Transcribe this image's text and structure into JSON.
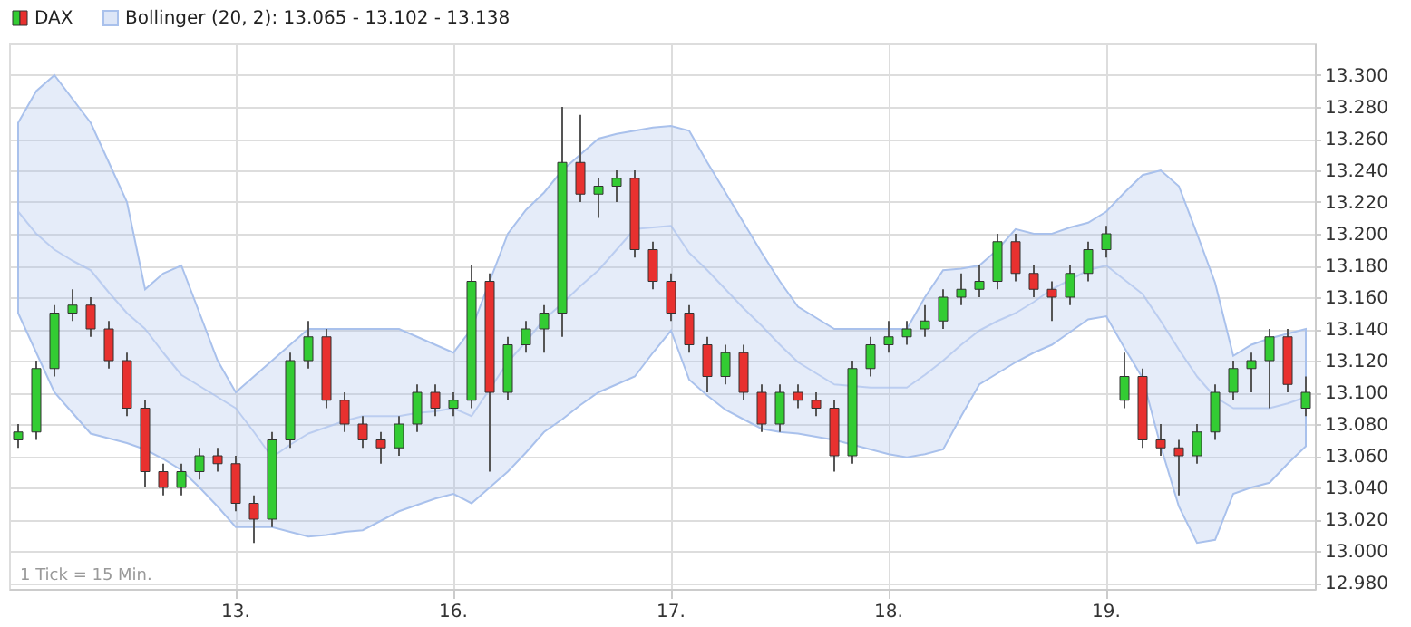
{
  "chart_data": {
    "type": "candlestick",
    "categories": [
      null,
      null,
      null,
      null,
      null,
      null,
      null,
      null,
      null,
      null,
      null,
      null,
      "13.",
      null,
      null,
      null,
      null,
      null,
      null,
      null,
      null,
      null,
      null,
      null,
      "16.",
      null,
      null,
      null,
      null,
      null,
      null,
      null,
      null,
      null,
      null,
      null,
      "17.",
      null,
      null,
      null,
      null,
      null,
      null,
      null,
      null,
      null,
      null,
      null,
      "18.",
      null,
      null,
      null,
      null,
      null,
      null,
      null,
      null,
      null,
      null,
      null,
      "19.",
      null,
      null,
      null,
      null,
      null,
      null,
      null,
      null,
      null,
      null,
      null
    ],
    "series": [
      {
        "name": "DAX",
        "ohlc": [
          [
            13.07,
            13.08,
            13.065,
            13.075
          ],
          [
            13.075,
            13.12,
            13.07,
            13.115
          ],
          [
            13.115,
            13.155,
            13.11,
            13.15
          ],
          [
            13.15,
            13.165,
            13.145,
            13.155
          ],
          [
            13.155,
            13.16,
            13.135,
            13.14
          ],
          [
            13.14,
            13.145,
            13.115,
            13.12
          ],
          [
            13.12,
            13.125,
            13.085,
            13.09
          ],
          [
            13.09,
            13.095,
            13.04,
            13.05
          ],
          [
            13.05,
            13.055,
            13.035,
            13.04
          ],
          [
            13.04,
            13.055,
            13.035,
            13.05
          ],
          [
            13.05,
            13.065,
            13.045,
            13.06
          ],
          [
            13.06,
            13.065,
            13.05,
            13.055
          ],
          [
            13.055,
            13.06,
            13.025,
            13.03
          ],
          [
            13.03,
            13.035,
            13.005,
            13.02
          ],
          [
            13.02,
            13.075,
            13.015,
            13.07
          ],
          [
            13.07,
            13.125,
            13.065,
            13.12
          ],
          [
            13.12,
            13.145,
            13.115,
            13.135
          ],
          [
            13.135,
            13.14,
            13.09,
            13.095
          ],
          [
            13.095,
            13.1,
            13.075,
            13.08
          ],
          [
            13.08,
            13.085,
            13.065,
            13.07
          ],
          [
            13.07,
            13.075,
            13.055,
            13.065
          ],
          [
            13.065,
            13.085,
            13.06,
            13.08
          ],
          [
            13.08,
            13.105,
            13.075,
            13.1
          ],
          [
            13.1,
            13.105,
            13.085,
            13.09
          ],
          [
            13.09,
            13.1,
            13.085,
            13.095
          ],
          [
            13.095,
            13.18,
            13.09,
            13.17
          ],
          [
            13.17,
            13.175,
            13.05,
            13.1
          ],
          [
            13.1,
            13.135,
            13.095,
            13.13
          ],
          [
            13.13,
            13.145,
            13.125,
            13.14
          ],
          [
            13.14,
            13.155,
            13.125,
            13.15
          ],
          [
            13.15,
            13.28,
            13.135,
            13.245
          ],
          [
            13.245,
            13.275,
            13.22,
            13.225
          ],
          [
            13.225,
            13.235,
            13.21,
            13.23
          ],
          [
            13.23,
            13.24,
            13.22,
            13.235
          ],
          [
            13.235,
            13.24,
            13.185,
            13.19
          ],
          [
            13.19,
            13.195,
            13.165,
            13.17
          ],
          [
            13.17,
            13.175,
            13.145,
            13.15
          ],
          [
            13.15,
            13.155,
            13.125,
            13.13
          ],
          [
            13.13,
            13.135,
            13.1,
            13.11
          ],
          [
            13.11,
            13.13,
            13.105,
            13.125
          ],
          [
            13.125,
            13.13,
            13.095,
            13.1
          ],
          [
            13.1,
            13.105,
            13.075,
            13.08
          ],
          [
            13.08,
            13.105,
            13.075,
            13.1
          ],
          [
            13.1,
            13.105,
            13.09,
            13.095
          ],
          [
            13.095,
            13.1,
            13.085,
            13.09
          ],
          [
            13.09,
            13.095,
            13.05,
            13.06
          ],
          [
            13.06,
            13.12,
            13.055,
            13.115
          ],
          [
            13.115,
            13.135,
            13.11,
            13.13
          ],
          [
            13.13,
            13.145,
            13.125,
            13.135
          ],
          [
            13.135,
            13.145,
            13.13,
            13.14
          ],
          [
            13.14,
            13.155,
            13.135,
            13.145
          ],
          [
            13.145,
            13.165,
            13.14,
            13.16
          ],
          [
            13.16,
            13.175,
            13.155,
            13.165
          ],
          [
            13.165,
            13.18,
            13.16,
            13.17
          ],
          [
            13.17,
            13.2,
            13.165,
            13.195
          ],
          [
            13.195,
            13.2,
            13.17,
            13.175
          ],
          [
            13.175,
            13.18,
            13.16,
            13.165
          ],
          [
            13.165,
            13.17,
            13.145,
            13.16
          ],
          [
            13.16,
            13.18,
            13.155,
            13.175
          ],
          [
            13.175,
            13.195,
            13.17,
            13.19
          ],
          [
            13.19,
            13.205,
            13.185,
            13.2
          ],
          [
            13.095,
            13.125,
            13.09,
            13.11
          ],
          [
            13.11,
            13.115,
            13.065,
            13.07
          ],
          [
            13.07,
            13.08,
            13.06,
            13.065
          ],
          [
            13.065,
            13.07,
            13.035,
            13.06
          ],
          [
            13.06,
            13.08,
            13.055,
            13.075
          ],
          [
            13.075,
            13.105,
            13.07,
            13.1
          ],
          [
            13.1,
            13.12,
            13.095,
            13.115
          ],
          [
            13.115,
            13.125,
            13.1,
            13.12
          ],
          [
            13.12,
            13.14,
            13.09,
            13.135
          ],
          [
            13.135,
            13.14,
            13.1,
            13.105
          ],
          [
            13.09,
            13.11,
            13.085,
            13.1
          ]
        ],
        "colors": [
          "#33cc33",
          "#33cc33",
          "#33cc33",
          "#33cc33",
          "#e8312f",
          "#e8312f",
          "#e8312f",
          "#e8312f",
          "#e8312f",
          "#33cc33",
          "#33cc33",
          "#e8312f",
          "#e8312f",
          "#e8312f",
          "#33cc33",
          "#33cc33",
          "#33cc33",
          "#e8312f",
          "#e8312f",
          "#e8312f",
          "#e8312f",
          "#33cc33",
          "#33cc33",
          "#e8312f",
          "#33cc33",
          "#33cc33",
          "#e8312f",
          "#33cc33",
          "#33cc33",
          "#33cc33",
          "#33cc33",
          "#e8312f",
          "#33cc33",
          "#33cc33",
          "#e8312f",
          "#e8312f",
          "#e8312f",
          "#e8312f",
          "#e8312f",
          "#33cc33",
          "#e8312f",
          "#e8312f",
          "#33cc33",
          "#e8312f",
          "#e8312f",
          "#e8312f",
          "#33cc33",
          "#33cc33",
          "#33cc33",
          "#33cc33",
          "#33cc33",
          "#33cc33",
          "#33cc33",
          "#33cc33",
          "#33cc33",
          "#e8312f",
          "#e8312f",
          "#e8312f",
          "#33cc33",
          "#33cc33",
          "#33cc33",
          "#33cc33",
          "#e8312f",
          "#e8312f",
          "#e8312f",
          "#33cc33",
          "#33cc33",
          "#33cc33",
          "#33cc33",
          "#33cc33",
          "#e8312f",
          "#33cc33"
        ]
      },
      {
        "name": "Bollinger (20, 2): 13.065 - 13.102 - 13.138",
        "type": "line",
        "color": "#a9c1ec",
        "values": [
          13.214,
          13.2,
          13.19,
          13.183,
          13.177,
          13.163,
          13.15,
          13.14,
          13.125,
          13.111,
          13.104,
          13.097,
          13.09,
          13.075,
          13.059,
          13.067,
          13.074,
          13.078,
          13.082,
          13.085,
          13.085,
          13.085,
          13.087,
          13.088,
          13.09,
          13.085,
          13.102,
          13.119,
          13.132,
          13.146,
          13.156,
          13.167,
          13.177,
          13.19,
          13.203,
          13.204,
          13.205,
          13.188,
          13.177,
          13.165,
          13.153,
          13.142,
          13.13,
          13.119,
          13.112,
          13.105,
          13.104,
          13.103,
          13.103,
          13.103,
          13.111,
          13.12,
          13.13,
          13.139,
          13.145,
          13.15,
          13.157,
          13.165,
          13.171,
          13.177,
          13.18,
          13.171,
          13.162,
          13.145,
          13.127,
          13.11,
          13.097,
          13.09,
          13.09,
          13.09,
          13.093,
          13.097
        ],
        "upper": [
          13.27,
          13.29,
          13.3,
          13.285,
          13.27,
          13.245,
          13.22,
          13.165,
          13.175,
          13.18,
          13.15,
          13.12,
          13.1,
          13.11,
          13.12,
          13.13,
          13.14,
          13.14,
          13.14,
          13.14,
          13.14,
          13.14,
          13.135,
          13.13,
          13.125,
          13.14,
          13.17,
          13.2,
          13.215,
          13.226,
          13.24,
          13.25,
          13.26,
          13.263,
          13.265,
          13.267,
          13.268,
          13.265,
          13.245,
          13.226,
          13.207,
          13.188,
          13.17,
          13.154,
          13.147,
          13.14,
          13.14,
          13.14,
          13.14,
          13.14,
          13.16,
          13.177,
          13.178,
          13.18,
          13.19,
          13.203,
          13.2,
          13.2,
          13.204,
          13.207,
          13.214,
          13.226,
          13.237,
          13.24,
          13.23,
          13.2,
          13.169,
          13.123,
          13.13,
          13.134,
          13.137,
          13.14
        ],
        "lower": [
          13.15,
          13.125,
          13.1,
          13.087,
          13.074,
          13.071,
          13.068,
          13.064,
          13.058,
          13.051,
          13.04,
          13.028,
          13.015,
          13.015,
          13.015,
          13.012,
          13.009,
          13.01,
          13.012,
          13.013,
          13.019,
          13.025,
          13.029,
          13.033,
          13.036,
          13.03,
          13.04,
          13.05,
          13.062,
          13.075,
          13.083,
          13.092,
          13.1,
          13.105,
          13.11,
          13.125,
          13.139,
          13.108,
          13.098,
          13.089,
          13.083,
          13.077,
          13.075,
          13.074,
          13.072,
          13.07,
          13.067,
          13.064,
          13.061,
          13.059,
          13.061,
          13.064,
          13.085,
          13.105,
          13.112,
          13.119,
          13.125,
          13.13,
          13.138,
          13.146,
          13.148,
          13.128,
          13.109,
          13.066,
          13.028,
          13.005,
          13.007,
          13.036,
          13.04,
          13.043,
          13.055,
          13.066
        ]
      }
    ],
    "ylim": [
      12.976,
      13.32
    ],
    "yticks": [
      {
        "value": 12.98,
        "label": "12.980"
      },
      {
        "value": 13.0,
        "label": "13.000"
      },
      {
        "value": 13.02,
        "label": "13.020"
      },
      {
        "value": 13.04,
        "label": "13.040"
      },
      {
        "value": 13.06,
        "label": "13.060"
      },
      {
        "value": 13.08,
        "label": "13.080"
      },
      {
        "value": 13.1,
        "label": "13.100"
      },
      {
        "value": 13.12,
        "label": "13.120"
      },
      {
        "value": 13.14,
        "label": "13.140"
      },
      {
        "value": 13.16,
        "label": "13.160"
      },
      {
        "value": 13.18,
        "label": "13.180"
      },
      {
        "value": 13.2,
        "label": "13.200"
      },
      {
        "value": 13.22,
        "label": "13.220"
      },
      {
        "value": 13.24,
        "label": "13.240"
      },
      {
        "value": 13.26,
        "label": "13.260"
      },
      {
        "value": 13.28,
        "label": "13.280"
      },
      {
        "value": 13.3,
        "label": "13.300"
      }
    ],
    "grid": true,
    "legend": "top left",
    "annotations": [
      "1 Tick = 15 Min."
    ]
  }
}
